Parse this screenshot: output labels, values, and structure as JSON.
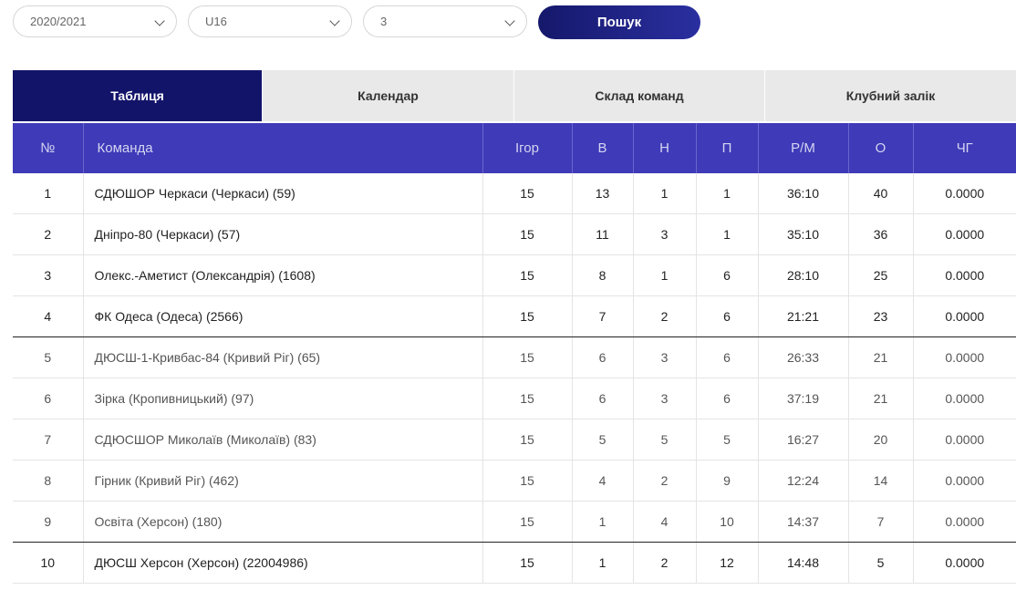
{
  "filters": {
    "season": "2020/2021",
    "age": "U16",
    "league": "3",
    "search_label": "Пошук"
  },
  "tabs": [
    "Таблиця",
    "Календар",
    "Склад команд",
    "Клубний залік"
  ],
  "table": {
    "headers": [
      "№",
      "Команда",
      "Ігор",
      "В",
      "Н",
      "П",
      "Р/М",
      "О",
      "ЧГ"
    ],
    "rows": [
      [
        "1",
        "СДЮШОР Черкаси (Черкаси) (59)",
        "15",
        "13",
        "1",
        "1",
        "36:10",
        "40",
        "0.0000"
      ],
      [
        "2",
        "Дніпро-80 (Черкаси) (57)",
        "15",
        "11",
        "3",
        "1",
        "35:10",
        "36",
        "0.0000"
      ],
      [
        "3",
        "Олекс.-Аметист (Олександрія) (1608)",
        "15",
        "8",
        "1",
        "6",
        "28:10",
        "25",
        "0.0000"
      ],
      [
        "4",
        "ФК Одеса (Одеса) (2566)",
        "15",
        "7",
        "2",
        "6",
        "21:21",
        "23",
        "0.0000"
      ],
      [
        "5",
        "ДЮСШ-1-Кривбас-84 (Кривий Ріг) (65)",
        "15",
        "6",
        "3",
        "6",
        "26:33",
        "21",
        "0.0000"
      ],
      [
        "6",
        "Зірка (Кропивницький) (97)",
        "15",
        "6",
        "3",
        "6",
        "37:19",
        "21",
        "0.0000"
      ],
      [
        "7",
        "СДЮСШОР Миколаїв (Миколаїв) (83)",
        "15",
        "5",
        "5",
        "5",
        "16:27",
        "20",
        "0.0000"
      ],
      [
        "8",
        "Гірник (Кривий Ріг) (462)",
        "15",
        "4",
        "2",
        "9",
        "12:24",
        "14",
        "0.0000"
      ],
      [
        "9",
        "Освіта (Херсон) (180)",
        "15",
        "1",
        "4",
        "10",
        "14:37",
        "7",
        "0.0000"
      ],
      [
        "10",
        "ДЮСШ Херсон (Херсон) (22004986)",
        "15",
        "1",
        "2",
        "12",
        "14:48",
        "5",
        "0.0000"
      ]
    ]
  }
}
